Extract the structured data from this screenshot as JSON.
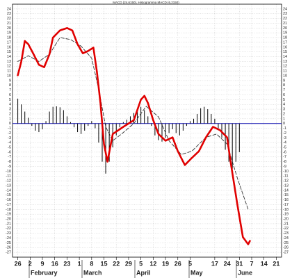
{
  "chart_data": {
    "type": "macd",
    "title": "MACD (24,6150), Histogramma MACD (6,2150)",
    "xlim": [
      -3,
      150
    ],
    "xticks": [
      {
        "value": 0,
        "label": "26"
      },
      {
        "value": 7,
        "label": "2"
      },
      {
        "value": 14,
        "label": "9"
      },
      {
        "value": 21,
        "label": "16"
      },
      {
        "value": 28,
        "label": "23"
      },
      {
        "value": 35,
        "label": "1"
      },
      {
        "value": 42,
        "label": "8"
      },
      {
        "value": 49,
        "label": "15"
      },
      {
        "value": 56,
        "label": "22"
      },
      {
        "value": 63,
        "label": "29"
      },
      {
        "value": 70,
        "label": "5"
      },
      {
        "value": 77,
        "label": "12"
      },
      {
        "value": 84,
        "label": "19"
      },
      {
        "value": 91,
        "label": "26"
      },
      {
        "value": 98,
        "label": "5"
      },
      {
        "value": 112,
        "label": "17"
      },
      {
        "value": 119,
        "label": "24"
      },
      {
        "value": 126,
        "label": "31"
      },
      {
        "value": 133,
        "label": "7"
      },
      {
        "value": 140,
        "label": "14"
      },
      {
        "value": 147,
        "label": "21"
      }
    ],
    "months": [
      "February",
      "March",
      "April",
      "May",
      "June"
    ],
    "ylim": [
      -28,
      25
    ],
    "yticks": [
      -27,
      -26,
      -25,
      -24,
      -23,
      -22,
      -21,
      -20,
      -19,
      -18,
      -17,
      -16,
      -15,
      -14,
      -13,
      -12,
      -11,
      -10,
      -9,
      -8,
      -7,
      -6,
      -5,
      -4,
      -3,
      -2,
      -1,
      0,
      1,
      2,
      3,
      4,
      5,
      6,
      7,
      8,
      9,
      10,
      11,
      12,
      13,
      14,
      15,
      16,
      17,
      18,
      19,
      20,
      21,
      22,
      23,
      24
    ],
    "grid": true,
    "zero_line_color": "#2a2ab8",
    "series": [
      {
        "style": "bar",
        "color": "#000000",
        "x": [
          0,
          2,
          4,
          6,
          8,
          10,
          12,
          14,
          16,
          18,
          20,
          22,
          24,
          26,
          28,
          30,
          32,
          34,
          36,
          38,
          40,
          42,
          44,
          46,
          48,
          50,
          52,
          54,
          56,
          58,
          60,
          62,
          64,
          66,
          68,
          70,
          72,
          74,
          76,
          78,
          80,
          82,
          84,
          86,
          88,
          90,
          92,
          94,
          96,
          98,
          100,
          102,
          104,
          106,
          108,
          110,
          112,
          114,
          116,
          118,
          120,
          122,
          124,
          126
        ],
        "values": [
          5.2,
          4,
          2.5,
          1.2,
          -0.5,
          -1.5,
          -1.8,
          -1.2,
          0.5,
          2.5,
          3.5,
          3.6,
          3.4,
          2.8,
          1.5,
          0.3,
          -0.8,
          -1.8,
          -2.2,
          -1.5,
          -0.5,
          0.5,
          -1,
          -4,
          -8,
          -10.5,
          -8,
          -5,
          -2.5,
          -0.8,
          0.3,
          0.8,
          1.5,
          2.2,
          3,
          3.5,
          2.8,
          1.5,
          -0.5,
          -2.5,
          -3.5,
          -3.8,
          -3,
          -2,
          -1.2,
          -2,
          -2.5,
          -1.5,
          -0.5,
          0.5,
          1,
          2,
          3.2,
          3.5,
          3,
          2,
          1,
          -1,
          -3,
          -5.5,
          -8,
          -9.5,
          -8,
          -6
        ]
      },
      {
        "style": "dashed",
        "color": "#333333",
        "x": [
          0,
          6,
          12,
          18,
          24,
          30,
          36,
          42,
          46,
          50,
          54,
          59,
          66,
          73,
          80,
          86,
          93,
          99,
          107,
          113,
          119,
          125,
          131
        ],
        "values": [
          13,
          14.2,
          13,
          14.5,
          18,
          17.6,
          16.2,
          13.7,
          7.2,
          -0.7,
          -3.6,
          -2.2,
          0,
          3.6,
          1.4,
          -3.6,
          -6.5,
          -5.8,
          -2.9,
          -2.2,
          -4.3,
          -11.6,
          -18
        ]
      },
      {
        "style": "line",
        "color": "#e00000",
        "x": [
          0,
          2,
          4,
          6,
          9,
          12,
          15,
          18,
          20,
          24,
          28,
          31,
          34,
          37,
          40,
          43,
          45,
          47,
          49,
          51,
          54,
          60,
          66,
          70,
          72,
          74,
          77,
          80,
          84,
          88,
          91,
          95,
          99,
          103,
          107,
          111,
          115,
          119,
          121,
          125,
          128,
          131,
          132
        ],
        "values": [
          10.1,
          13,
          17.3,
          16.6,
          14.5,
          12.3,
          11.8,
          14.5,
          18,
          19.5,
          20,
          19.5,
          16.6,
          14.7,
          15.2,
          15.9,
          10.8,
          4.3,
          -4.3,
          -8,
          -2.2,
          -0.7,
          0.7,
          5,
          5.8,
          4.3,
          0.7,
          -2.2,
          -3.6,
          -2.9,
          -5.8,
          -8.7,
          -7.2,
          -5.8,
          -2.9,
          -0.7,
          -1.4,
          -2.9,
          -8,
          -17.3,
          -23.8,
          -25.3,
          -24.6
        ]
      }
    ]
  }
}
